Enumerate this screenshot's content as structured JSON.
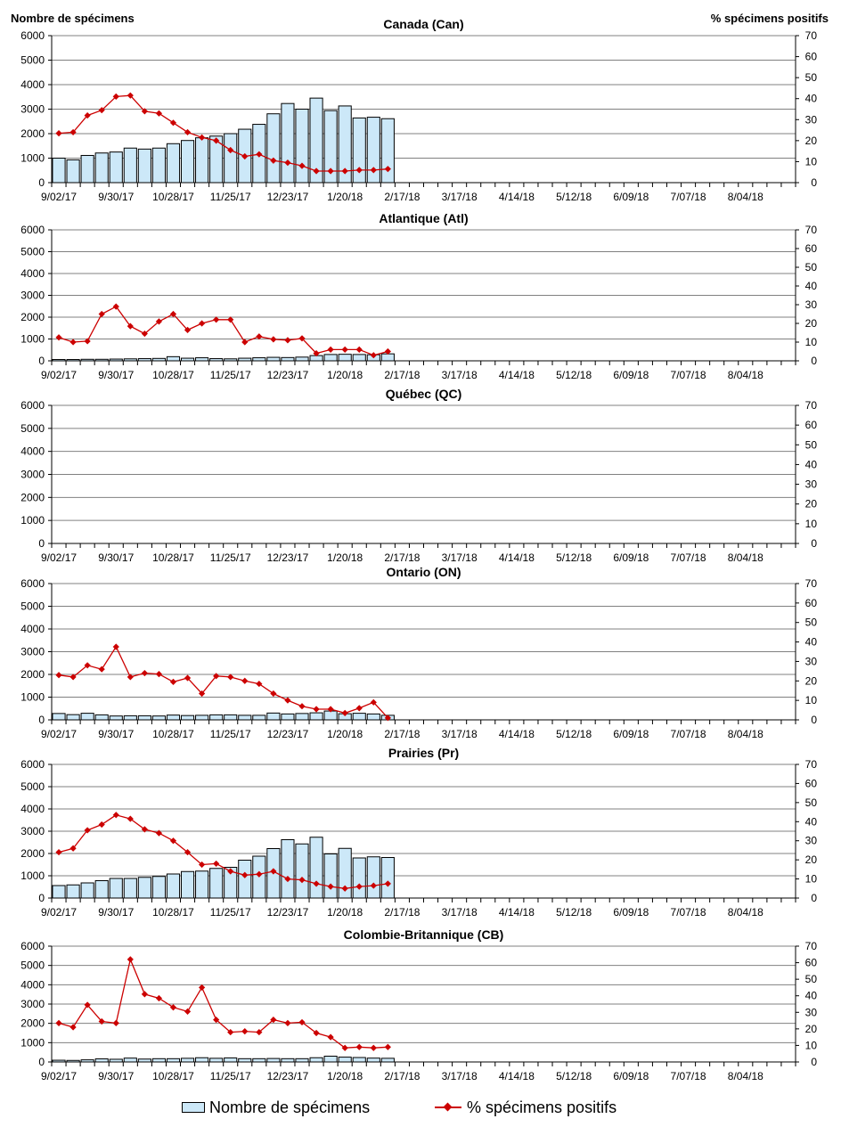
{
  "axis_titles": {
    "left": "Nombre de spécimens",
    "right": "% spécimens positifs"
  },
  "legend": {
    "bars_label": "Nombre de spécimens",
    "line_label": "% spécimens positifs"
  },
  "colors": {
    "bar_fill": "#cce8f8",
    "bar_stroke": "#000000",
    "line": "#cc0000",
    "grid": "#808080"
  },
  "chart_data": [
    {
      "type": "bar+line",
      "title": "Canada (Can)",
      "x_tick_labels": [
        "9/02/17",
        "9/30/17",
        "10/28/17",
        "11/25/17",
        "12/23/17",
        "1/20/18",
        "2/17/18",
        "3/17/18",
        "4/14/18",
        "5/12/18",
        "6/09/18",
        "7/07/18",
        "8/04/18"
      ],
      "n_weeks": 52,
      "y_left_lim": [
        0,
        6000
      ],
      "y_right_lim": [
        0,
        70
      ],
      "y_left_ticks": [
        0,
        1000,
        2000,
        3000,
        4000,
        5000,
        6000
      ],
      "y_right_ticks": [
        0,
        10,
        20,
        30,
        40,
        50,
        60,
        70
      ],
      "grid": "horizontal",
      "series": [
        {
          "name": "Nombre de spécimens",
          "kind": "bar",
          "axis": "left",
          "values": [
            1000,
            930,
            1110,
            1210,
            1250,
            1410,
            1370,
            1410,
            1590,
            1720,
            1830,
            1900,
            2000,
            2180,
            2380,
            2810,
            3230,
            3000,
            3450,
            2940,
            3130,
            2640,
            2670,
            2610
          ]
        },
        {
          "name": "% spécimens positifs",
          "kind": "line",
          "axis": "right",
          "values": [
            23.5,
            24,
            32,
            34.5,
            41,
            41.5,
            34,
            33,
            28.5,
            24,
            21.5,
            20,
            15.5,
            12.5,
            13.5,
            10.5,
            9.5,
            8,
            5.5,
            5.5,
            5.5,
            6,
            6,
            6.5
          ]
        }
      ]
    },
    {
      "type": "bar+line",
      "title": "Atlantique (Atl)",
      "x_tick_labels": [
        "9/02/17",
        "9/30/17",
        "10/28/17",
        "11/25/17",
        "12/23/17",
        "1/20/18",
        "2/17/18",
        "3/17/18",
        "4/14/18",
        "5/12/18",
        "6/09/18",
        "7/07/18",
        "8/04/18"
      ],
      "n_weeks": 52,
      "y_left_lim": [
        0,
        6000
      ],
      "y_right_lim": [
        0,
        70
      ],
      "y_left_ticks": [
        0,
        1000,
        2000,
        3000,
        4000,
        5000,
        6000
      ],
      "y_right_ticks": [
        0,
        10,
        20,
        30,
        40,
        50,
        60,
        70
      ],
      "grid": "horizontal",
      "series": [
        {
          "name": "Nombre de spécimens",
          "kind": "bar",
          "axis": "left",
          "values": [
            60,
            60,
            70,
            70,
            80,
            90,
            100,
            110,
            190,
            120,
            140,
            100,
            90,
            120,
            140,
            160,
            150,
            170,
            240,
            290,
            300,
            290,
            280,
            320
          ]
        },
        {
          "name": "% spécimens positifs",
          "kind": "line",
          "axis": "right",
          "values": [
            12.5,
            10,
            10.5,
            25,
            29,
            18.5,
            14.5,
            21,
            25,
            16.5,
            20,
            22,
            22,
            10,
            13,
            11.5,
            11,
            12,
            4,
            6,
            6,
            6,
            3,
            5
          ]
        }
      ]
    },
    {
      "type": "bar+line",
      "title": "Québec (QC)",
      "x_tick_labels": [
        "9/02/17",
        "9/30/17",
        "10/28/17",
        "11/25/17",
        "12/23/17",
        "1/20/18",
        "2/17/18",
        "3/17/18",
        "4/14/18",
        "5/12/18",
        "6/09/18",
        "7/07/18",
        "8/04/18"
      ],
      "n_weeks": 52,
      "y_left_lim": [
        0,
        6000
      ],
      "y_right_lim": [
        0,
        70
      ],
      "y_left_ticks": [
        0,
        1000,
        2000,
        3000,
        4000,
        5000,
        6000
      ],
      "y_right_ticks": [
        0,
        10,
        20,
        30,
        40,
        50,
        60,
        70
      ],
      "grid": "horizontal",
      "series": [
        {
          "name": "Nombre de spécimens",
          "kind": "bar",
          "axis": "left",
          "values": []
        },
        {
          "name": "% spécimens positifs",
          "kind": "line",
          "axis": "right",
          "values": []
        }
      ]
    },
    {
      "type": "bar+line",
      "title": "Ontario (ON)",
      "x_tick_labels": [
        "9/02/17",
        "9/30/17",
        "10/28/17",
        "11/25/17",
        "12/23/17",
        "1/20/18",
        "2/17/18",
        "3/17/18",
        "4/14/18",
        "5/12/18",
        "6/09/18",
        "7/07/18",
        "8/04/18"
      ],
      "n_weeks": 52,
      "y_left_lim": [
        0,
        6000
      ],
      "y_right_lim": [
        0,
        70
      ],
      "y_left_ticks": [
        0,
        1000,
        2000,
        3000,
        4000,
        5000,
        6000
      ],
      "y_right_ticks": [
        0,
        10,
        20,
        30,
        40,
        50,
        60,
        70
      ],
      "grid": "horizontal",
      "series": [
        {
          "name": "Nombre de spécimens",
          "kind": "bar",
          "axis": "left",
          "values": [
            280,
            230,
            290,
            220,
            170,
            180,
            180,
            170,
            210,
            190,
            200,
            220,
            220,
            200,
            200,
            300,
            260,
            280,
            310,
            390,
            270,
            290,
            260,
            200
          ]
        },
        {
          "name": "% spécimens positifs",
          "kind": "line",
          "axis": "right",
          "values": [
            23,
            22,
            28,
            26,
            37.5,
            22,
            24,
            23.5,
            19.5,
            21.5,
            13.5,
            22.5,
            22,
            20,
            18.5,
            13.5,
            10,
            7,
            5.5,
            5.5,
            3.5,
            6,
            9,
            1
          ]
        }
      ]
    },
    {
      "type": "bar+line",
      "title": "Prairies (Pr)",
      "x_tick_labels": [
        "9/02/17",
        "9/30/17",
        "10/28/17",
        "11/25/17",
        "12/23/17",
        "1/20/18",
        "2/17/18",
        "3/17/18",
        "4/14/18",
        "5/12/18",
        "6/09/18",
        "7/07/18",
        "8/04/18"
      ],
      "n_weeks": 52,
      "y_left_lim": [
        0,
        6000
      ],
      "y_right_lim": [
        0,
        70
      ],
      "y_left_ticks": [
        0,
        1000,
        2000,
        3000,
        4000,
        5000,
        6000
      ],
      "y_right_ticks": [
        0,
        10,
        20,
        30,
        40,
        50,
        60,
        70
      ],
      "grid": "horizontal",
      "series": [
        {
          "name": "Nombre de spécimens",
          "kind": "bar",
          "axis": "left",
          "values": [
            560,
            590,
            680,
            780,
            880,
            880,
            930,
            970,
            1080,
            1190,
            1210,
            1330,
            1380,
            1700,
            1880,
            2220,
            2620,
            2430,
            2730,
            1980,
            2230,
            1800,
            1850,
            1820
          ]
        },
        {
          "name": "% spécimens positifs",
          "kind": "line",
          "axis": "right",
          "values": [
            24,
            26,
            35.5,
            38.5,
            43.5,
            41.5,
            36,
            34,
            30,
            24,
            17.5,
            18,
            14,
            12,
            12.5,
            14,
            10,
            9.5,
            7.5,
            6,
            5,
            6,
            6.5,
            7.5
          ]
        }
      ]
    },
    {
      "type": "bar+line",
      "title": "Colombie-Britannique (CB)",
      "x_tick_labels": [
        "9/02/17",
        "9/30/17",
        "10/28/17",
        "11/25/17",
        "12/23/17",
        "1/20/18",
        "2/17/18",
        "3/17/18",
        "4/14/18",
        "5/12/18",
        "6/09/18",
        "7/07/18",
        "8/04/18"
      ],
      "n_weeks": 52,
      "y_left_lim": [
        0,
        6000
      ],
      "y_right_lim": [
        0,
        70
      ],
      "y_left_ticks": [
        0,
        1000,
        2000,
        3000,
        4000,
        5000,
        6000
      ],
      "y_right_ticks": [
        0,
        10,
        20,
        30,
        40,
        50,
        60,
        70
      ],
      "grid": "horizontal",
      "series": [
        {
          "name": "Nombre de spécimens",
          "kind": "bar",
          "axis": "left",
          "values": [
            90,
            80,
            110,
            160,
            140,
            200,
            150,
            170,
            170,
            190,
            220,
            190,
            210,
            170,
            170,
            180,
            170,
            170,
            220,
            300,
            250,
            230,
            200,
            190
          ]
        },
        {
          "name": "% spécimens positifs",
          "kind": "line",
          "axis": "right",
          "values": [
            23.5,
            21,
            34.5,
            24.5,
            23.5,
            62,
            41,
            38.5,
            33,
            30.5,
            45,
            25.5,
            18,
            18.5,
            18,
            25.5,
            23.5,
            24,
            17.5,
            15,
            8.5,
            9,
            8.5,
            9
          ]
        }
      ]
    }
  ]
}
